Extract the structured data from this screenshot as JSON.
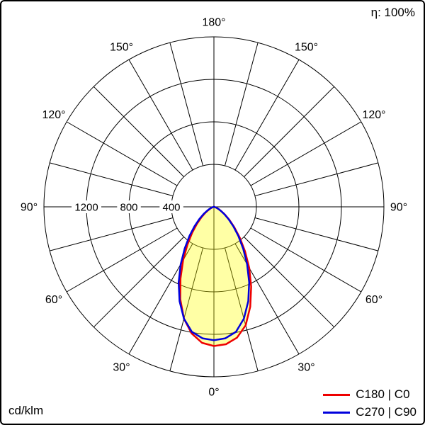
{
  "header": {
    "efficiency": "η: 100%"
  },
  "footer": {
    "unit": "cd/klm"
  },
  "legend": {
    "items": [
      {
        "label": "C180 | C0",
        "color": "#ee0000"
      },
      {
        "label": "C270 | C90",
        "color": "#0000dd"
      }
    ]
  },
  "chart_data": {
    "type": "line",
    "projection": "polar",
    "unit": "cd/klm",
    "angle_zero": "bottom",
    "grid": {
      "angle_step_deg": 15,
      "radial_circle_values": [
        400,
        800,
        1200,
        1600
      ],
      "radial_tick_labels": [
        "1200",
        "800",
        "400"
      ],
      "radial_max": 1600,
      "angle_tick_labels": [
        "0°",
        "30°",
        "60°",
        "90°",
        "120°",
        "150°",
        "180°"
      ]
    },
    "fill_color": "#ffff00",
    "fill_opacity": 0.35,
    "gamma_deg": [
      0,
      5,
      10,
      15,
      20,
      25,
      30,
      35,
      40,
      45,
      50,
      55,
      60,
      65,
      70,
      75,
      80,
      85,
      90
    ],
    "series": [
      {
        "name": "C180 | C0",
        "color": "#ee0000",
        "values_left_c180": [
          1310,
          1285,
          1210,
          1090,
          925,
          745,
          580,
          435,
          318,
          226,
          155,
          100,
          61,
          35,
          17,
          8,
          3,
          1,
          0
        ],
        "values_right_c0": [
          1310,
          1298,
          1250,
          1155,
          1000,
          830,
          665,
          510,
          380,
          272,
          190,
          125,
          78,
          46,
          24,
          12,
          5,
          2,
          0
        ]
      },
      {
        "name": "C270 | C90",
        "color": "#0000dd",
        "values_left_c270": [
          1255,
          1242,
          1195,
          1090,
          945,
          785,
          625,
          480,
          358,
          258,
          180,
          119,
          75,
          44,
          22,
          10,
          4,
          1,
          0
        ],
        "values_right_c90": [
          1255,
          1242,
          1195,
          1090,
          945,
          785,
          625,
          480,
          358,
          258,
          180,
          119,
          75,
          44,
          22,
          10,
          4,
          1,
          0
        ]
      }
    ]
  }
}
